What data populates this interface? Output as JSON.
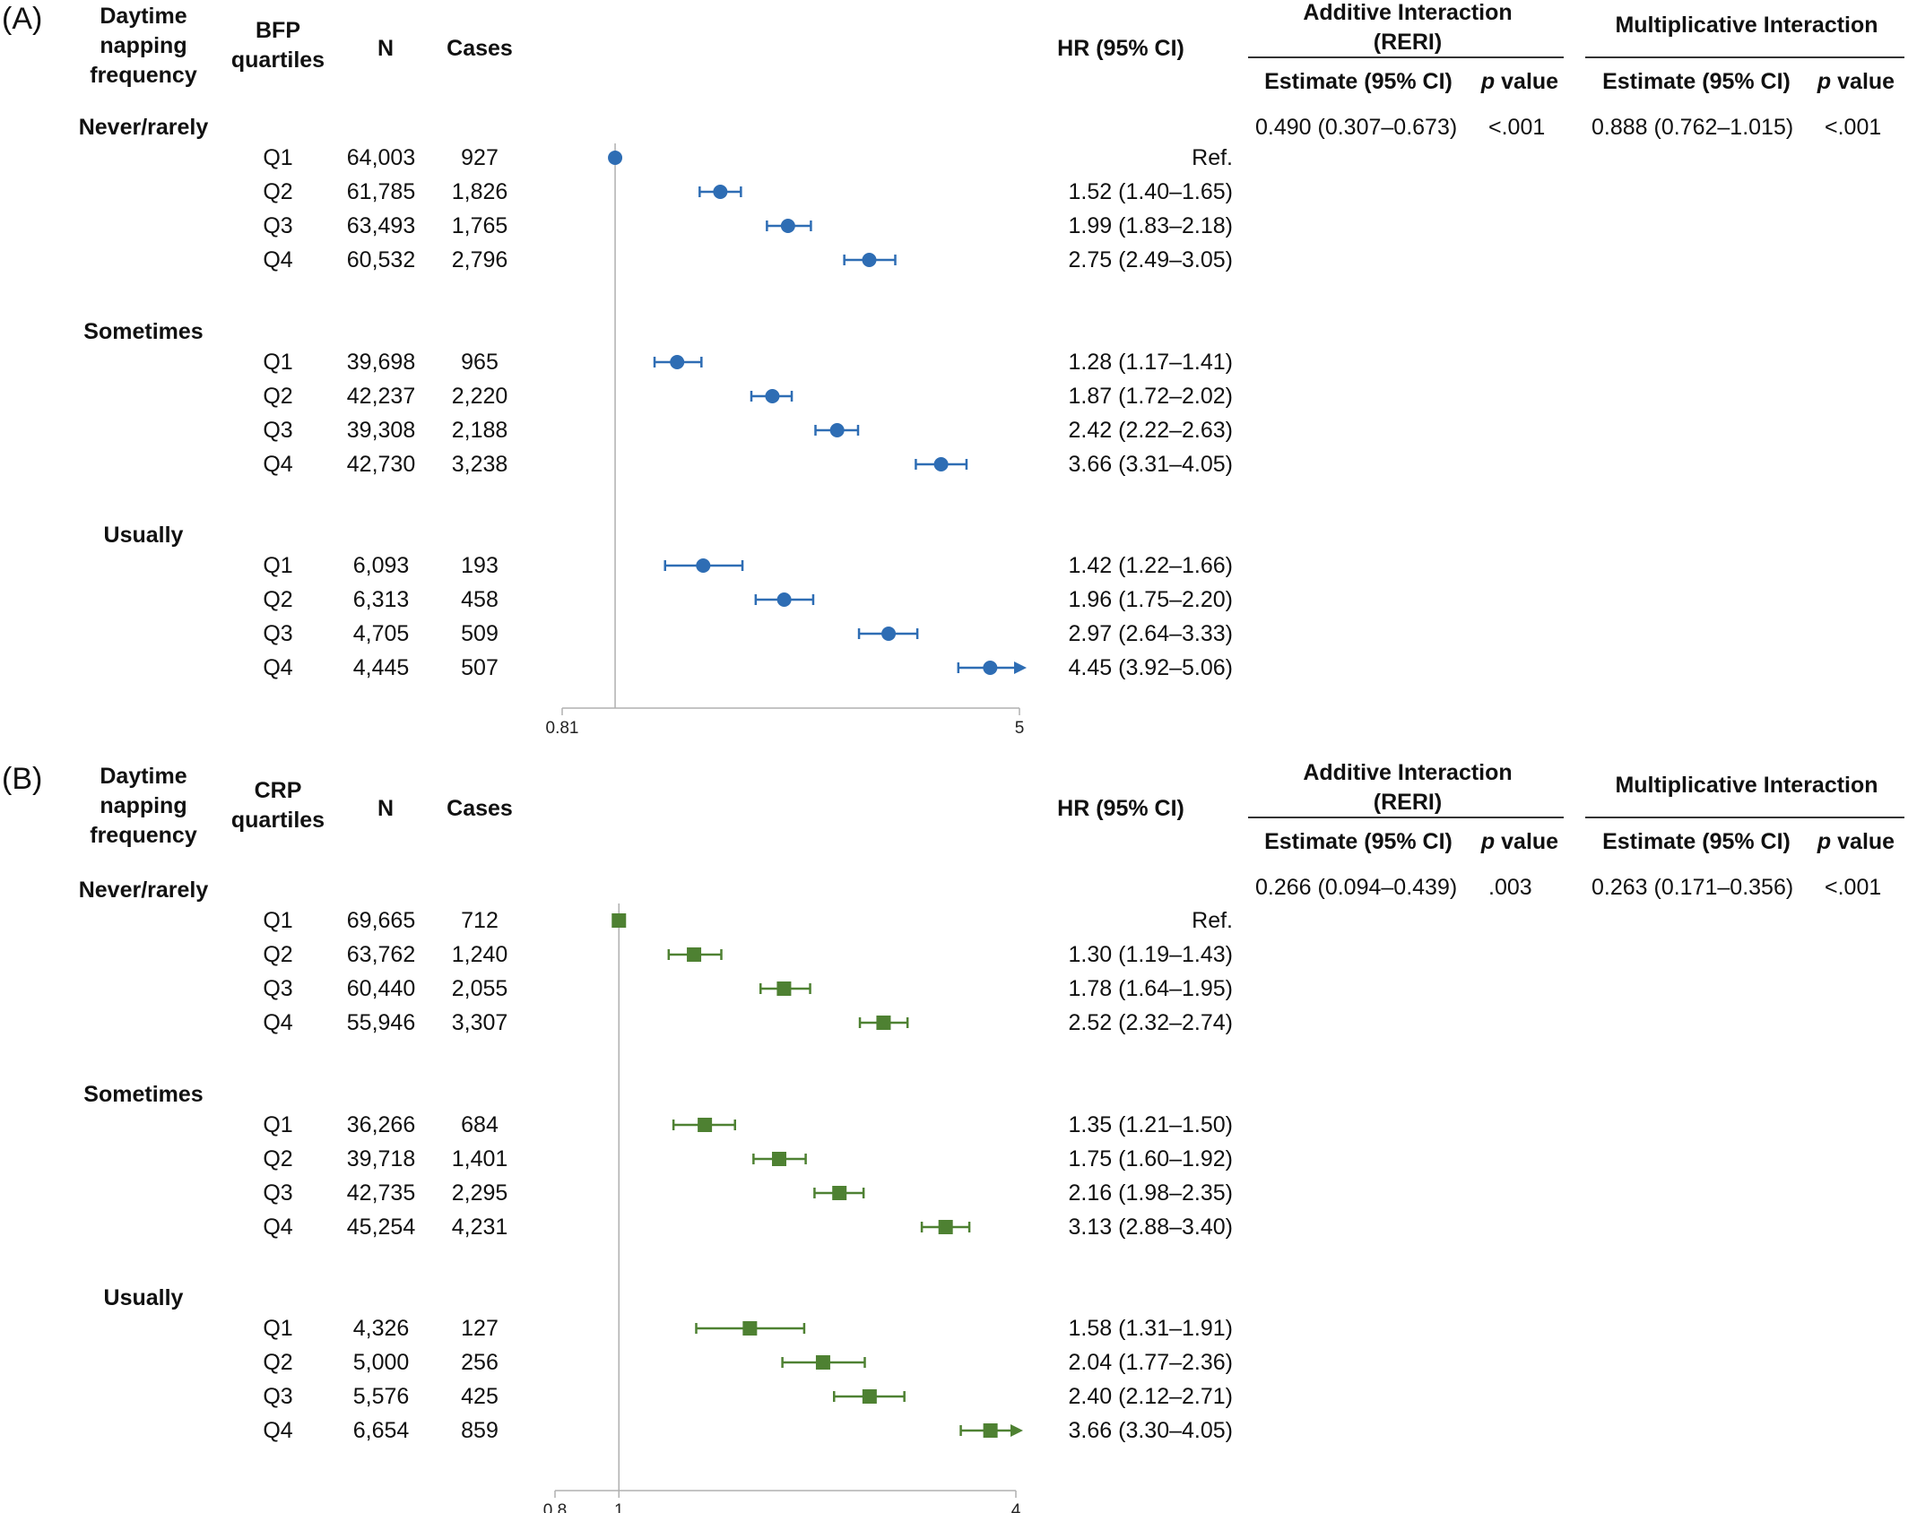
{
  "panels": [
    {
      "label": "(A)",
      "headers": {
        "napping": "Daytime\nnapping\nfrequency",
        "quartiles": "BFP\nquartiles",
        "n": "N",
        "cases": "Cases",
        "hr": "HR (95% CI)",
        "additive_title": "Additive Interaction\n(RERI)",
        "multiplicative_title": "Multiplicative Interaction",
        "estimate": "Estimate (95% CI)",
        "p_italic": "p",
        "p_rest": " value"
      },
      "additive": {
        "estimate": "0.490 (0.307–0.673)",
        "p": "<.001"
      },
      "multiplicative": {
        "estimate": "0.888 (0.762–1.015)",
        "p": "<.001"
      },
      "groups": [
        {
          "name": "Never/rarely",
          "rows": [
            {
              "q": "Q1",
              "n": "64,003",
              "cases": "927",
              "hr_text": "Ref."
            },
            {
              "q": "Q2",
              "n": "61,785",
              "cases": "1,826",
              "hr_text": "1.52 (1.40–1.65)"
            },
            {
              "q": "Q3",
              "n": "63,493",
              "cases": "1,765",
              "hr_text": "1.99 (1.83–2.18)"
            },
            {
              "q": "Q4",
              "n": "60,532",
              "cases": "2,796",
              "hr_text": "2.75 (2.49–3.05)"
            }
          ]
        },
        {
          "name": "Sometimes",
          "rows": [
            {
              "q": "Q1",
              "n": "39,698",
              "cases": "965",
              "hr_text": "1.28 (1.17–1.41)"
            },
            {
              "q": "Q2",
              "n": "42,237",
              "cases": "2,220",
              "hr_text": "1.87 (1.72–2.02)"
            },
            {
              "q": "Q3",
              "n": "39,308",
              "cases": "2,188",
              "hr_text": "2.42 (2.22–2.63)"
            },
            {
              "q": "Q4",
              "n": "42,730",
              "cases": "3,238",
              "hr_text": "3.66 (3.31–4.05)"
            }
          ]
        },
        {
          "name": "Usually",
          "rows": [
            {
              "q": "Q1",
              "n": "6,093",
              "cases": "193",
              "hr_text": "1.42 (1.22–1.66)"
            },
            {
              "q": "Q2",
              "n": "6,313",
              "cases": "458",
              "hr_text": "1.96 (1.75–2.20)"
            },
            {
              "q": "Q3",
              "n": "4,705",
              "cases": "509",
              "hr_text": "2.97 (2.64–3.33)"
            },
            {
              "q": "Q4",
              "n": "4,445",
              "cases": "507",
              "hr_text": "4.45 (3.92–5.06)"
            }
          ]
        }
      ]
    },
    {
      "label": "(B)",
      "headers": {
        "napping": "Daytime\nnapping\nfrequency",
        "quartiles": "CRP\nquartiles",
        "n": "N",
        "cases": "Cases",
        "hr": "HR (95% CI)",
        "additive_title": "Additive Interaction\n(RERI)",
        "multiplicative_title": "Multiplicative Interaction",
        "estimate": "Estimate (95% CI)",
        "p_italic": "p",
        "p_rest": " value"
      },
      "additive": {
        "estimate": "0.266 (0.094–0.439)",
        "p": ".003"
      },
      "multiplicative": {
        "estimate": "0.263 (0.171–0.356)",
        "p": "<.001"
      },
      "groups": [
        {
          "name": "Never/rarely",
          "rows": [
            {
              "q": "Q1",
              "n": "69,665",
              "cases": "712",
              "hr_text": "Ref."
            },
            {
              "q": "Q2",
              "n": "63,762",
              "cases": "1,240",
              "hr_text": "1.30 (1.19–1.43)"
            },
            {
              "q": "Q3",
              "n": "60,440",
              "cases": "2,055",
              "hr_text": "1.78 (1.64–1.95)"
            },
            {
              "q": "Q4",
              "n": "55,946",
              "cases": "3,307",
              "hr_text": "2.52 (2.32–2.74)"
            }
          ]
        },
        {
          "name": "Sometimes",
          "rows": [
            {
              "q": "Q1",
              "n": "36,266",
              "cases": "684",
              "hr_text": "1.35 (1.21–1.50)"
            },
            {
              "q": "Q2",
              "n": "39,718",
              "cases": "1,401",
              "hr_text": "1.75 (1.60–1.92)"
            },
            {
              "q": "Q3",
              "n": "42,735",
              "cases": "2,295",
              "hr_text": "2.16 (1.98–2.35)"
            },
            {
              "q": "Q4",
              "n": "45,254",
              "cases": "4,231",
              "hr_text": "3.13 (2.88–3.40)"
            }
          ]
        },
        {
          "name": "Usually",
          "rows": [
            {
              "q": "Q1",
              "n": "4,326",
              "cases": "127",
              "hr_text": "1.58 (1.31–1.91)"
            },
            {
              "q": "Q2",
              "n": "5,000",
              "cases": "256",
              "hr_text": "2.04 (1.77–2.36)"
            },
            {
              "q": "Q3",
              "n": "5,576",
              "cases": "425",
              "hr_text": "2.40 (2.12–2.71)"
            },
            {
              "q": "Q4",
              "n": "6,654",
              "cases": "859",
              "hr_text": "3.66 (3.30–4.05)"
            }
          ]
        }
      ]
    }
  ],
  "chart_data": [
    {
      "type": "forest",
      "scale": "log",
      "xlim": [
        0.81,
        5
      ],
      "ticks": [
        "0.81",
        "5"
      ],
      "marker": "circle",
      "color": "#2E6DB4",
      "reference_line": 1,
      "series": [
        {
          "name": "Never/rarely",
          "categories": [
            "Q1",
            "Q2",
            "Q3",
            "Q4"
          ],
          "hr": [
            1,
            1.52,
            1.99,
            2.75
          ],
          "lower": [
            1,
            1.4,
            1.83,
            2.49
          ],
          "upper": [
            1,
            1.65,
            2.18,
            3.05
          ]
        },
        {
          "name": "Sometimes",
          "categories": [
            "Q1",
            "Q2",
            "Q3",
            "Q4"
          ],
          "hr": [
            1.28,
            1.87,
            2.42,
            3.66
          ],
          "lower": [
            1.17,
            1.72,
            2.22,
            3.31
          ],
          "upper": [
            1.41,
            2.02,
            2.63,
            4.05
          ]
        },
        {
          "name": "Usually",
          "categories": [
            "Q1",
            "Q2",
            "Q3",
            "Q4"
          ],
          "hr": [
            1.42,
            1.96,
            2.97,
            4.45
          ],
          "lower": [
            1.22,
            1.75,
            2.64,
            3.92
          ],
          "upper": [
            1.66,
            2.2,
            3.33,
            5.06
          ]
        }
      ]
    },
    {
      "type": "forest",
      "scale": "log",
      "xlim": [
        0.8,
        4
      ],
      "ticks": [
        "0.8",
        "1",
        "4"
      ],
      "marker": "square",
      "color": "#4E8132",
      "reference_line": 1,
      "series": [
        {
          "name": "Never/rarely",
          "categories": [
            "Q1",
            "Q2",
            "Q3",
            "Q4"
          ],
          "hr": [
            1,
            1.3,
            1.78,
            2.52
          ],
          "lower": [
            1,
            1.19,
            1.64,
            2.32
          ],
          "upper": [
            1,
            1.43,
            1.95,
            2.74
          ]
        },
        {
          "name": "Sometimes",
          "categories": [
            "Q1",
            "Q2",
            "Q3",
            "Q4"
          ],
          "hr": [
            1.35,
            1.75,
            2.16,
            3.13
          ],
          "lower": [
            1.21,
            1.6,
            1.98,
            2.88
          ],
          "upper": [
            1.5,
            1.92,
            2.35,
            3.4
          ]
        },
        {
          "name": "Usually",
          "categories": [
            "Q1",
            "Q2",
            "Q3",
            "Q4"
          ],
          "hr": [
            1.58,
            2.04,
            2.4,
            3.66
          ],
          "lower": [
            1.31,
            1.77,
            2.12,
            3.3
          ],
          "upper": [
            1.91,
            2.36,
            2.71,
            4.05
          ]
        }
      ]
    }
  ]
}
